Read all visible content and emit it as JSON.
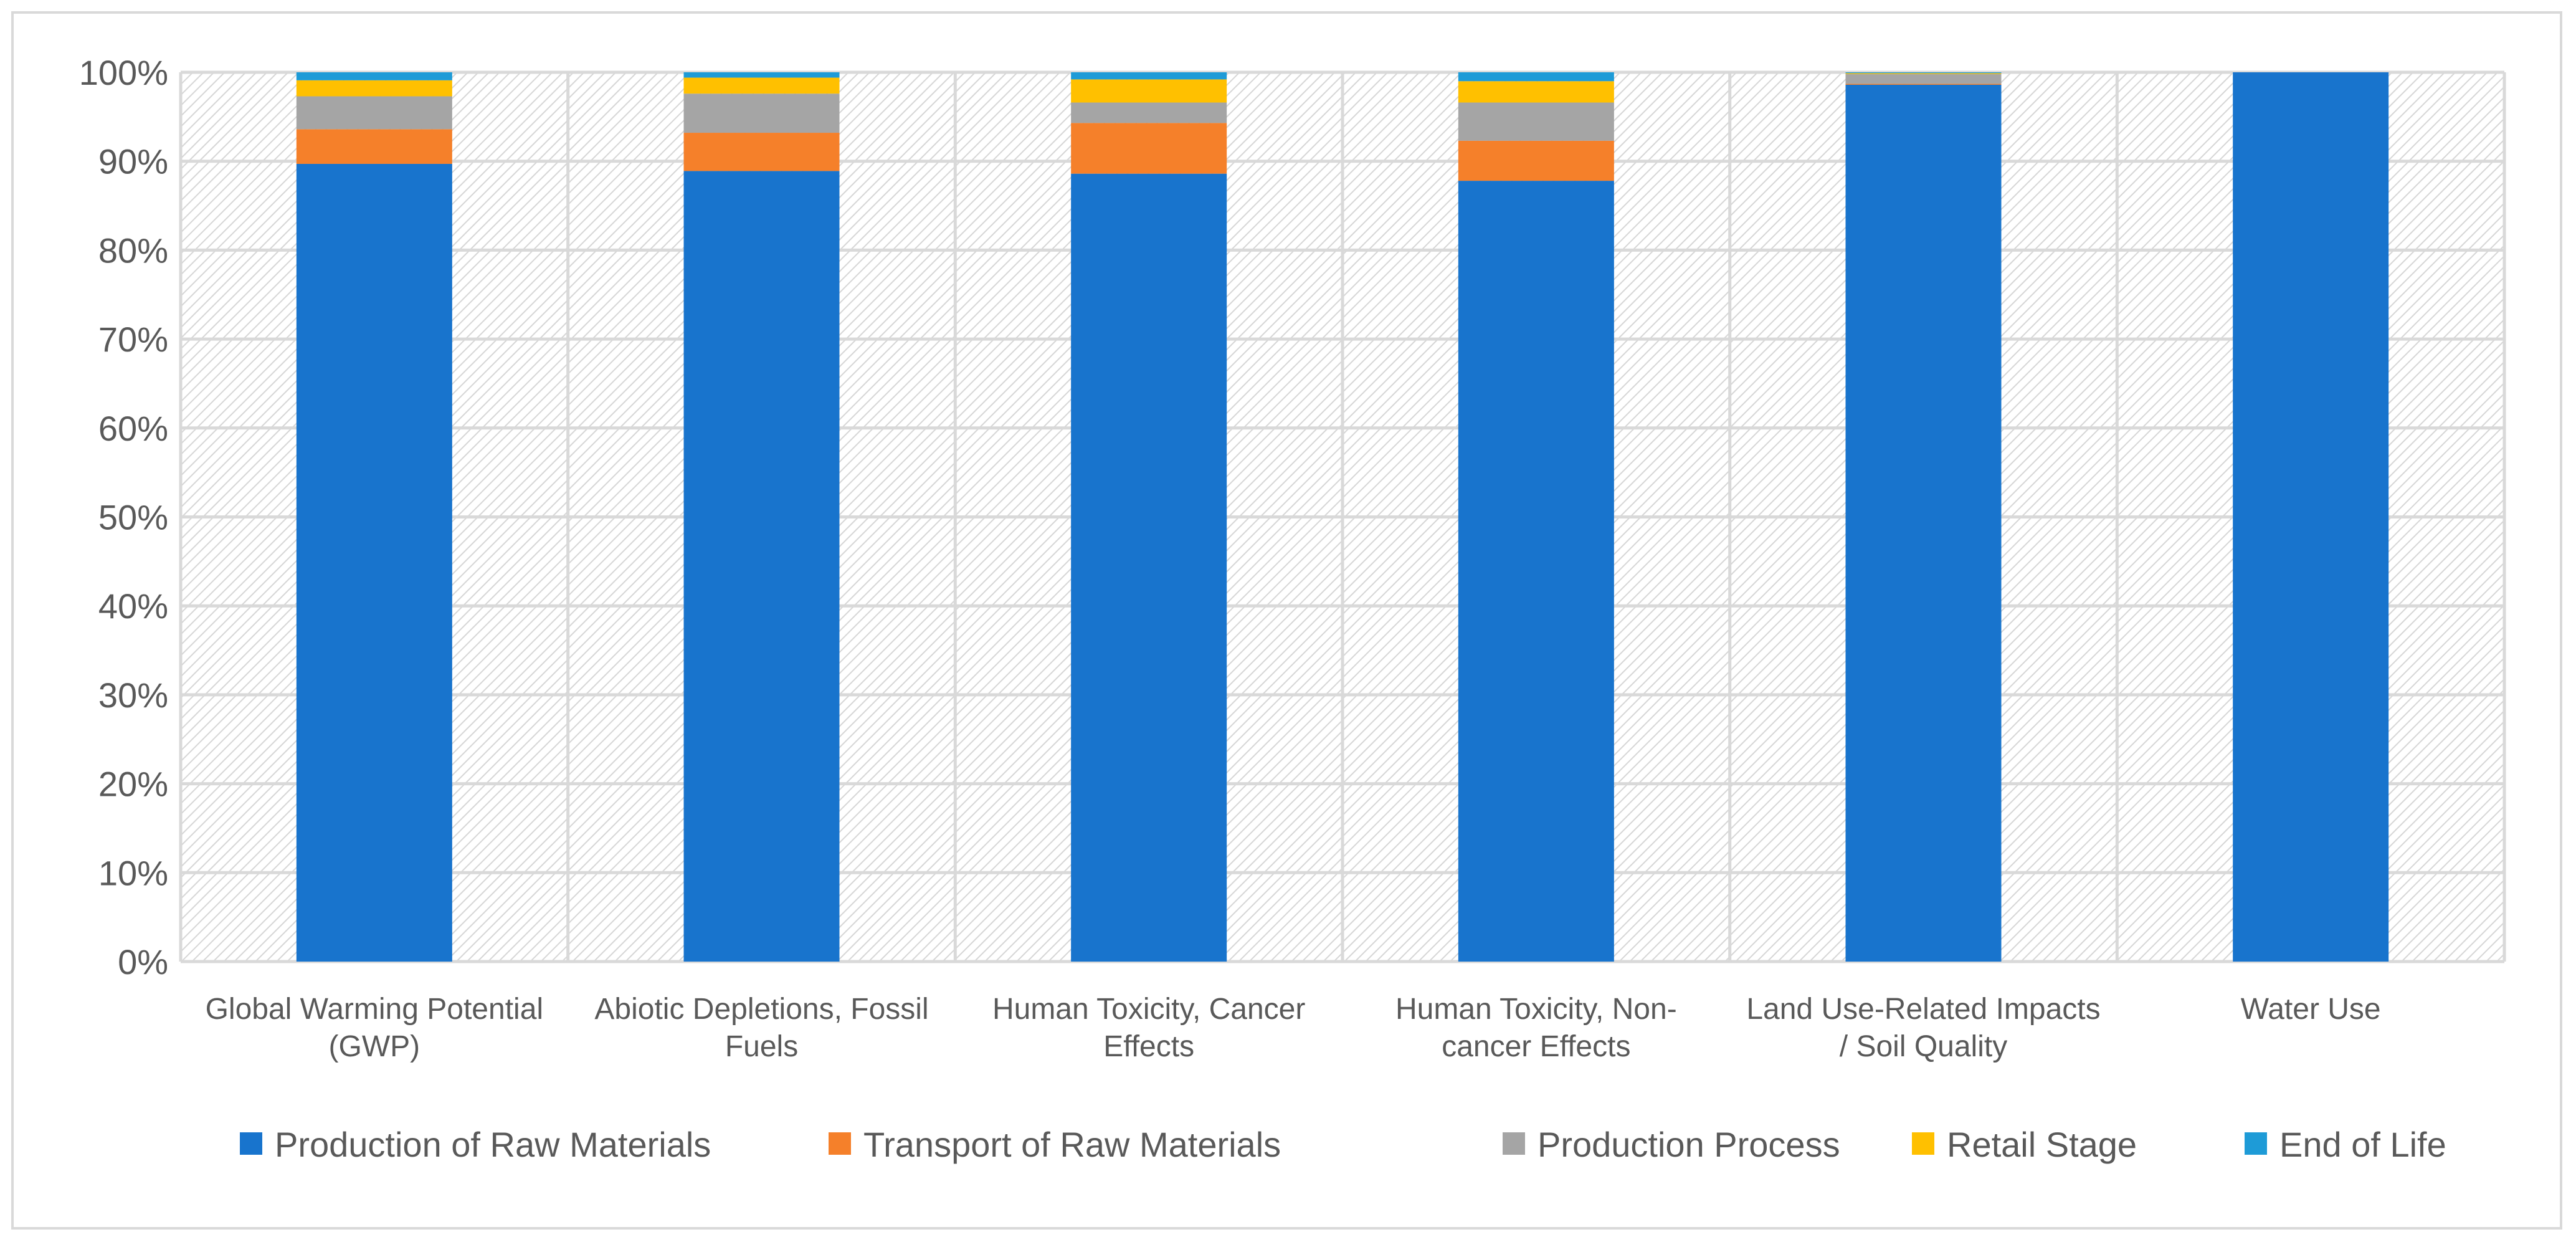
{
  "chart_data": {
    "type": "bar",
    "stacked": true,
    "title": "",
    "xlabel": "",
    "ylabel": "",
    "ylim": [
      0,
      100
    ],
    "y_ticks": [
      "0%",
      "10%",
      "20%",
      "30%",
      "40%",
      "50%",
      "60%",
      "70%",
      "80%",
      "90%",
      "100%"
    ],
    "categories": [
      [
        "Global Warming Potential",
        "(GWP)"
      ],
      [
        "Abiotic Depletions, Fossil",
        "Fuels"
      ],
      [
        "Human Toxicity, Cancer",
        "Effects"
      ],
      [
        "Human Toxicity, Non-",
        "cancer Effects"
      ],
      [
        "Land Use-Related Impacts",
        "/ Soil Quality"
      ],
      [
        "Water Use"
      ]
    ],
    "series": [
      {
        "name": "Production of Raw Materials",
        "color": "#1874cd",
        "values": [
          89.7,
          88.9,
          88.6,
          87.8,
          98.6,
          100.0
        ]
      },
      {
        "name": "Transport of Raw Materials",
        "color": "#f5802a",
        "values": [
          3.9,
          4.3,
          5.7,
          4.5,
          0.1,
          0.0
        ]
      },
      {
        "name": "Production Process",
        "color": "#a5a5a5",
        "values": [
          3.7,
          4.4,
          2.3,
          4.3,
          1.1,
          0.0
        ]
      },
      {
        "name": "Retail Stage",
        "color": "#ffc000",
        "values": [
          1.8,
          1.8,
          2.6,
          2.4,
          0.1,
          0.0
        ]
      },
      {
        "name": "End of Life",
        "color": "#1e9bd7",
        "values": [
          0.9,
          0.6,
          0.8,
          1.0,
          0.1,
          0.0
        ]
      }
    ],
    "grid": true,
    "legend_position": "bottom"
  }
}
